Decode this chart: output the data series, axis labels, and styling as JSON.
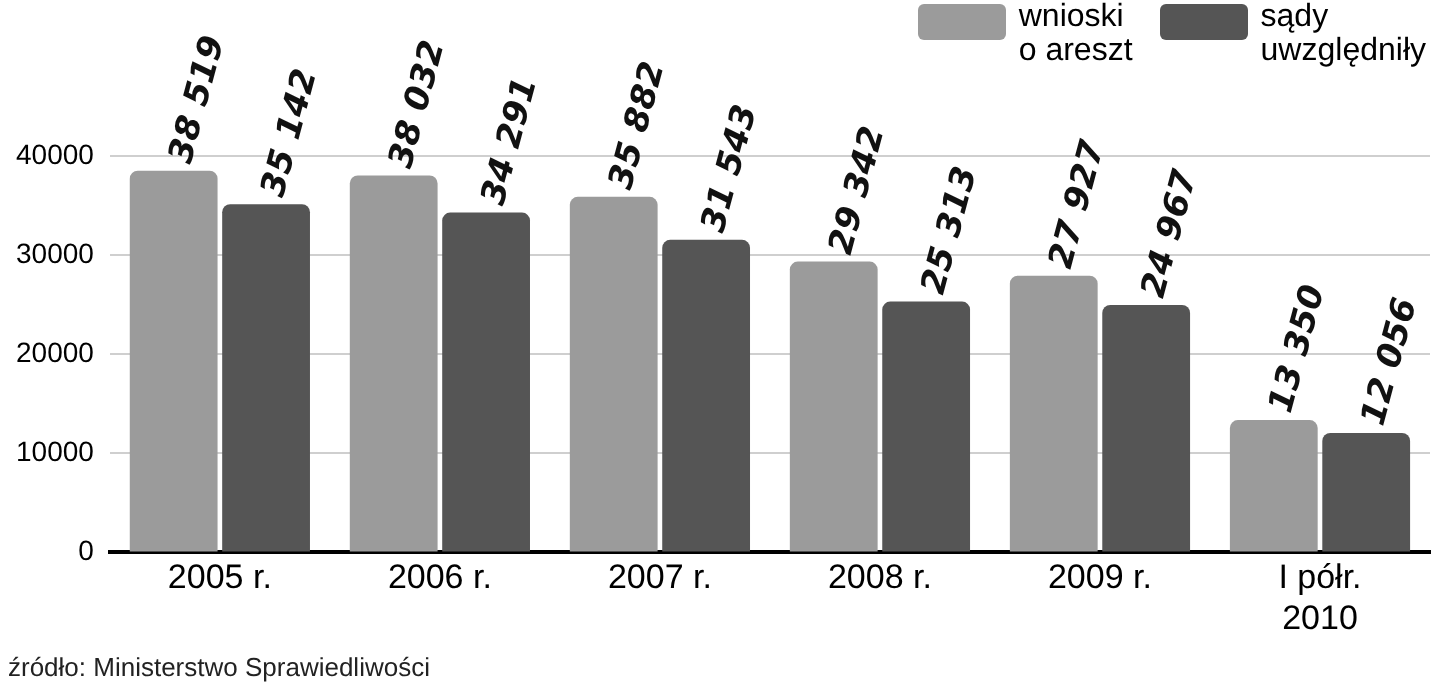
{
  "chart_data": {
    "type": "bar",
    "categories": [
      "2005 r.",
      "2006 r.",
      "2007 r.",
      "2008 r.",
      "2009 r.",
      "I półr.\n2010"
    ],
    "series": [
      {
        "name": "wnioski\no areszt",
        "color": "#9b9b9b",
        "values": [
          38519,
          38032,
          35882,
          29342,
          27927,
          13350
        ],
        "value_labels": [
          "38 519",
          "38 032",
          "35 882",
          "29 342",
          "27 927",
          "13 350"
        ]
      },
      {
        "name": "sądy\nuwzględniły",
        "color": "#555555",
        "values": [
          35142,
          34291,
          31543,
          25313,
          24967,
          12056
        ],
        "value_labels": [
          "35 142",
          "34 291",
          "31 543",
          "25 313",
          "24 967",
          "12 056"
        ]
      }
    ],
    "ylim": [
      0,
      40000
    ],
    "yticks": [
      0,
      10000,
      20000,
      30000,
      40000
    ],
    "grid": "y",
    "legend": "top right",
    "annotations": [
      "źródło: Ministerstwo Sprawiedliwości"
    ]
  }
}
